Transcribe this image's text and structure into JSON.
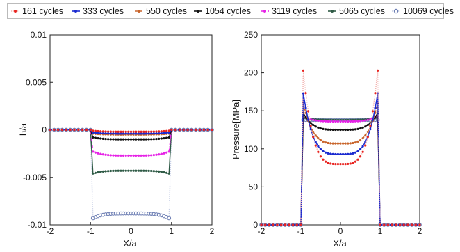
{
  "legend": {
    "placement": "top",
    "entries": [
      {
        "label": "161 cycles",
        "color": "#e8231f",
        "line_color": "#f2b3b0",
        "dash": "dotted",
        "marker": "dot"
      },
      {
        "label": "333 cycles",
        "color": "#1a2ad0",
        "line_color": "#1a2ad0",
        "dash": "solid",
        "marker": "dot"
      },
      {
        "label": "550 cycles",
        "color": "#c8642a",
        "line_color": "#c8642a",
        "dash": "dashed",
        "marker": "dot"
      },
      {
        "label": "1054 cycles",
        "color": "#111111",
        "line_color": "#111111",
        "dash": "solid",
        "marker": "dot"
      },
      {
        "label": "3119 cycles",
        "color": "#e623e6",
        "line_color": "#e623e6",
        "dash": "dashdot",
        "marker": "dot"
      },
      {
        "label": "5065 cycles",
        "color": "#2e5a45",
        "line_color": "#2e5a45",
        "dash": "solid",
        "marker": "dot"
      },
      {
        "label": "10069 cycles",
        "color": "#6e7fb4",
        "line_color": "#c7cfe6",
        "dash": "dotted",
        "marker": "circle"
      }
    ]
  },
  "chart_data": [
    {
      "type": "line",
      "xlabel": "X/a",
      "ylabel": "h/a",
      "xlim": [
        -2,
        2
      ],
      "ylim": [
        -0.01,
        0.01
      ],
      "xticks": [
        "-2",
        "-1",
        "0",
        "1",
        "2"
      ],
      "yticks": [
        "0.01",
        "0.005",
        "0",
        "-0.005",
        "-0.01"
      ],
      "grid": false,
      "contact_half_width": 0.94,
      "series": [
        {
          "name": "161 cycles",
          "center": -0.0002,
          "edge": -0.0001
        },
        {
          "name": "333 cycles",
          "center": -0.0004,
          "edge": -0.0003
        },
        {
          "name": "550 cycles",
          "center": -0.0005,
          "edge": -0.0004
        },
        {
          "name": "1054 cycles",
          "center": -0.001,
          "edge": -0.0008
        },
        {
          "name": "3119 cycles",
          "center": -0.0027,
          "edge": -0.0023
        },
        {
          "name": "5065 cycles",
          "center": -0.0043,
          "edge": -0.0046
        },
        {
          "name": "10069 cycles",
          "center": -0.0088,
          "edge": -0.0093
        }
      ]
    },
    {
      "type": "line",
      "xlabel": "X/a",
      "ylabel": "Pressure[MPa]",
      "xlim": [
        -2,
        2
      ],
      "ylim": [
        0,
        250
      ],
      "xticks": [
        "-2",
        "-1",
        "0",
        "1",
        "2"
      ],
      "yticks": [
        "250",
        "200",
        "150",
        "100",
        "50",
        "0"
      ],
      "grid": false,
      "contact_half_width": 0.94,
      "series": [
        {
          "name": "161 cycles",
          "center": 80,
          "edge": 203
        },
        {
          "name": "333 cycles",
          "center": 93,
          "edge": 173
        },
        {
          "name": "550 cycles",
          "center": 107,
          "edge": 160
        },
        {
          "name": "1054 cycles",
          "center": 125,
          "edge": 147
        },
        {
          "name": "3119 cycles",
          "center": 136,
          "edge": 143
        },
        {
          "name": "5065 cycles",
          "center": 138,
          "edge": 141
        },
        {
          "name": "10069 cycles",
          "center": 138,
          "edge": 138
        }
      ]
    }
  ]
}
